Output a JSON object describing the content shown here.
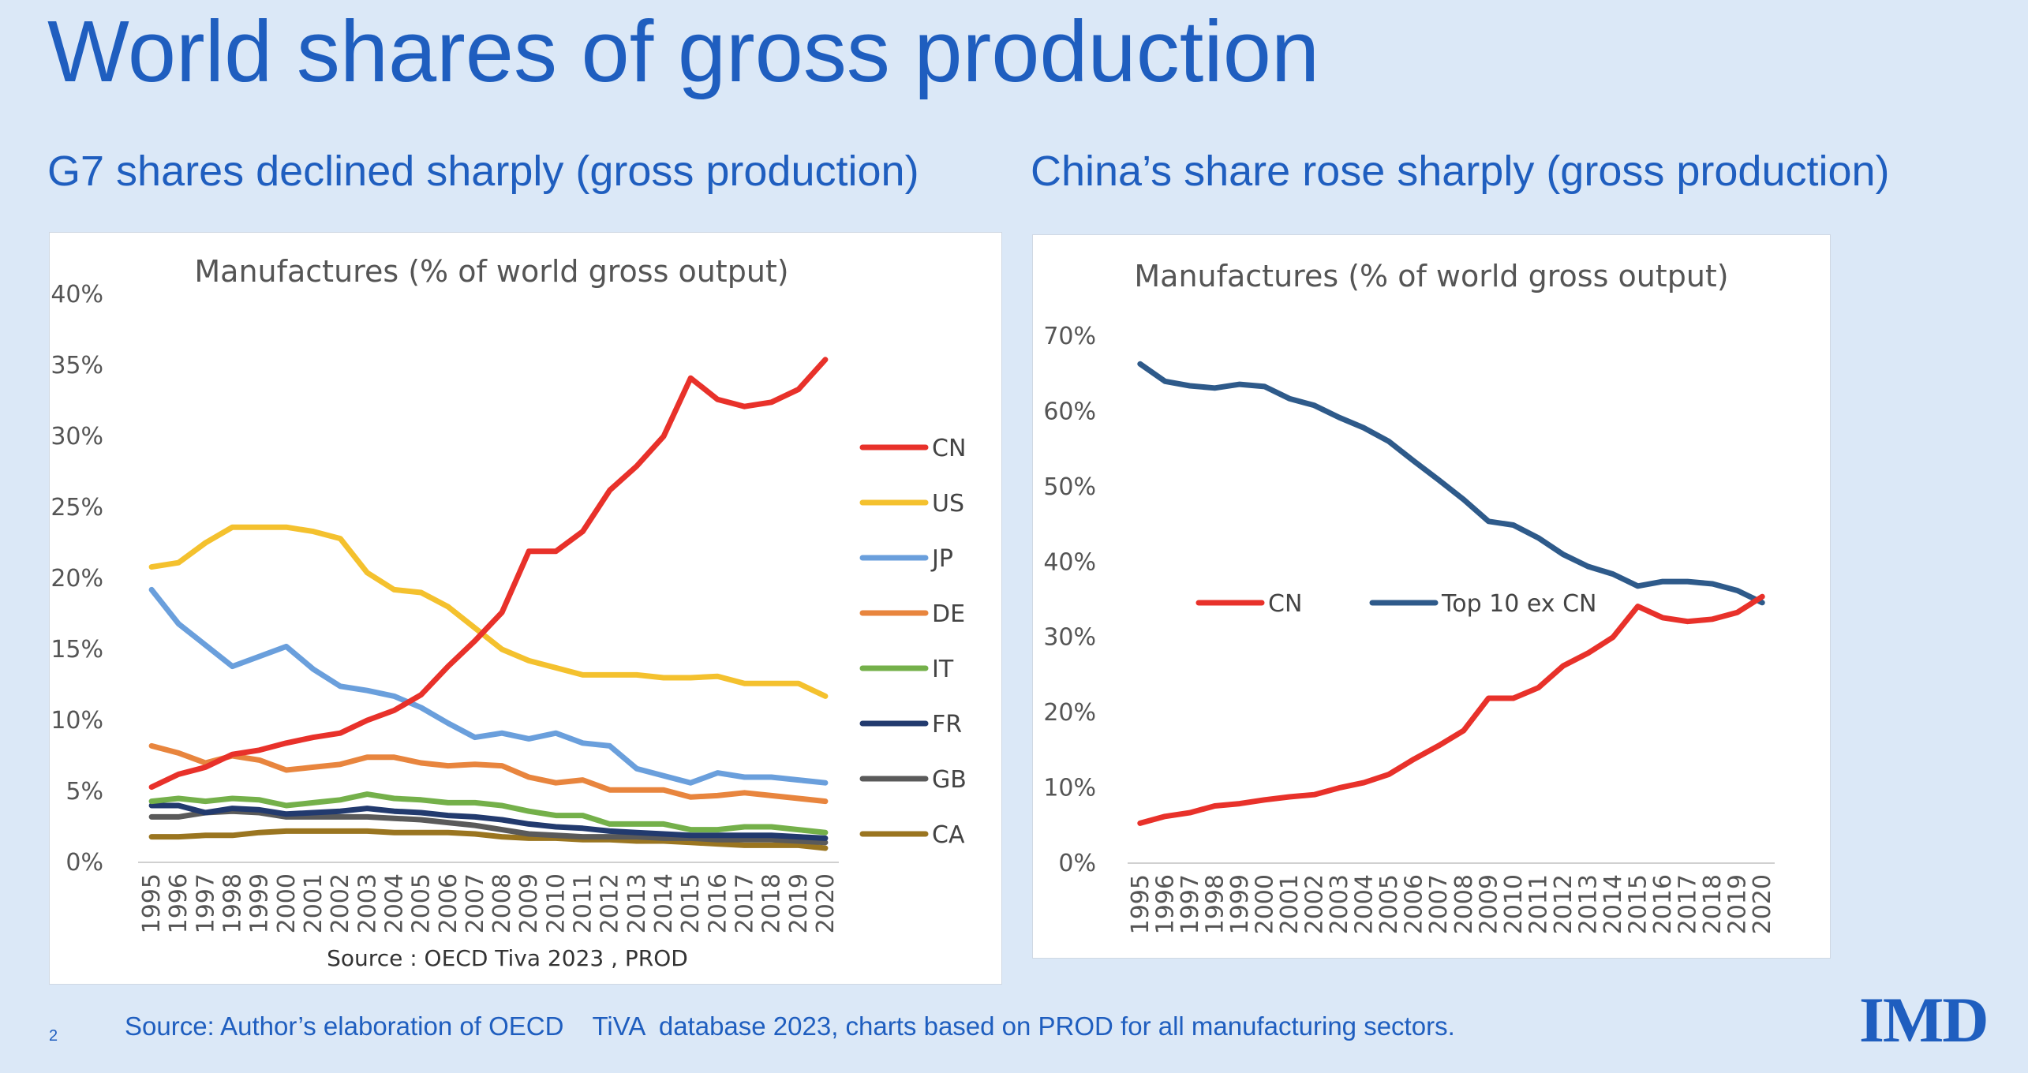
{
  "slide": {
    "title": "World shares of gross production",
    "left_subtitle": "G7 shares declined sharply (gross production)",
    "right_subtitle": "China’s share rose sharply (gross production)",
    "footnote": "Source: Author’s elaboration of OECD    TiVA  database 2023, charts based on PROD for all manufacturing sectors.",
    "page_number": "2",
    "logo": "IMD"
  },
  "chart_data": [
    {
      "type": "line",
      "title": "Manufactures (% of world gross output)",
      "source": "Source : OECD Tiva 2023 , PROD",
      "x": [
        "1995",
        "1996",
        "1997",
        "1998",
        "1999",
        "2000",
        "2001",
        "2002",
        "2003",
        "2004",
        "2005",
        "2006",
        "2007",
        "2008",
        "2009",
        "2010",
        "2011",
        "2012",
        "2013",
        "2014",
        "2015",
        "2016",
        "2017",
        "2018",
        "2019",
        "2020"
      ],
      "ylim": [
        0,
        40
      ],
      "yticks": [
        0,
        5,
        10,
        15,
        20,
        25,
        30,
        35,
        40
      ],
      "ytick_labels": [
        "0%",
        "5%",
        "10%",
        "15%",
        "20%",
        "25%",
        "30%",
        "35%",
        "40%"
      ],
      "legend_position": "right",
      "grid": false,
      "series": [
        {
          "name": "CN",
          "color": "#e8312a",
          "values": [
            5.3,
            6.2,
            6.7,
            7.6,
            7.9,
            8.4,
            8.8,
            9.1,
            10.0,
            10.7,
            11.8,
            13.8,
            15.6,
            17.6,
            21.9,
            21.9,
            23.3,
            26.2,
            27.9,
            30.0,
            34.1,
            32.6,
            32.1,
            32.4,
            33.3,
            35.4
          ]
        },
        {
          "name": "US",
          "color": "#f4c12e",
          "values": [
            20.8,
            21.1,
            22.5,
            23.6,
            23.6,
            23.6,
            23.3,
            22.8,
            20.4,
            19.2,
            19.0,
            18.0,
            16.5,
            15.0,
            14.2,
            13.7,
            13.2,
            13.2,
            13.2,
            13.0,
            13.0,
            13.1,
            12.6,
            12.6,
            12.6,
            11.7
          ]
        },
        {
          "name": "JP",
          "color": "#6a9fdc",
          "values": [
            19.2,
            16.8,
            15.3,
            13.8,
            14.5,
            15.2,
            13.6,
            12.4,
            12.1,
            11.7,
            10.9,
            9.8,
            8.8,
            9.1,
            8.7,
            9.1,
            8.4,
            8.2,
            6.6,
            6.1,
            5.6,
            6.3,
            6.0,
            6.0,
            5.8,
            5.6
          ]
        },
        {
          "name": "DE",
          "color": "#e8853e",
          "values": [
            8.2,
            7.7,
            7.0,
            7.5,
            7.2,
            6.5,
            6.7,
            6.9,
            7.4,
            7.4,
            7.0,
            6.8,
            6.9,
            6.8,
            6.0,
            5.6,
            5.8,
            5.1,
            5.1,
            5.1,
            4.6,
            4.7,
            4.9,
            4.7,
            4.5,
            4.3
          ]
        },
        {
          "name": "IT",
          "color": "#74b04a",
          "values": [
            4.3,
            4.5,
            4.3,
            4.5,
            4.4,
            4.0,
            4.2,
            4.4,
            4.8,
            4.5,
            4.4,
            4.2,
            4.2,
            4.0,
            3.6,
            3.3,
            3.3,
            2.7,
            2.7,
            2.7,
            2.3,
            2.3,
            2.5,
            2.5,
            2.3,
            2.1
          ]
        },
        {
          "name": "FR",
          "color": "#223a6e",
          "values": [
            4.0,
            4.0,
            3.5,
            3.8,
            3.7,
            3.4,
            3.5,
            3.6,
            3.8,
            3.6,
            3.5,
            3.3,
            3.2,
            3.0,
            2.7,
            2.5,
            2.4,
            2.2,
            2.1,
            2.0,
            1.9,
            1.9,
            1.9,
            1.9,
            1.8,
            1.7
          ]
        },
        {
          "name": "GB",
          "color": "#5a5a5a",
          "values": [
            3.2,
            3.2,
            3.5,
            3.6,
            3.5,
            3.2,
            3.2,
            3.2,
            3.2,
            3.1,
            3.0,
            2.8,
            2.6,
            2.3,
            2.0,
            1.9,
            1.8,
            1.8,
            1.8,
            1.7,
            1.7,
            1.6,
            1.6,
            1.6,
            1.5,
            1.4
          ]
        },
        {
          "name": "CA",
          "color": "#9a7520",
          "values": [
            1.8,
            1.8,
            1.9,
            1.9,
            2.1,
            2.2,
            2.2,
            2.2,
            2.2,
            2.1,
            2.1,
            2.1,
            2.0,
            1.8,
            1.7,
            1.7,
            1.6,
            1.6,
            1.5,
            1.5,
            1.4,
            1.3,
            1.2,
            1.2,
            1.2,
            1.0
          ]
        }
      ]
    },
    {
      "type": "line",
      "title": "Manufactures (% of world gross output)",
      "x": [
        "1995",
        "1996",
        "1997",
        "1998",
        "1999",
        "2000",
        "2001",
        "2002",
        "2003",
        "2004",
        "2005",
        "2006",
        "2007",
        "2008",
        "2009",
        "2010",
        "2011",
        "2012",
        "2013",
        "2014",
        "2015",
        "2016",
        "2017",
        "2018",
        "2019",
        "2020"
      ],
      "ylim": [
        0,
        70
      ],
      "yticks": [
        0,
        10,
        20,
        30,
        40,
        50,
        60,
        70
      ],
      "ytick_labels": [
        "0%",
        "10%",
        "20%",
        "30%",
        "40%",
        "50%",
        "60%",
        "70%"
      ],
      "legend_position": "center",
      "grid": false,
      "series": [
        {
          "name": "CN",
          "color": "#e8312a",
          "values": [
            5.3,
            6.2,
            6.7,
            7.6,
            7.9,
            8.4,
            8.8,
            9.1,
            10.0,
            10.7,
            11.8,
            13.8,
            15.6,
            17.6,
            21.9,
            21.9,
            23.3,
            26.2,
            27.9,
            30.0,
            34.1,
            32.6,
            32.1,
            32.4,
            33.3,
            35.4
          ]
        },
        {
          "name": "Top  10 ex CN",
          "color": "#2e5a8a",
          "values": [
            66.3,
            64.0,
            63.4,
            63.1,
            63.6,
            63.3,
            61.7,
            60.8,
            59.2,
            57.8,
            56.0,
            53.4,
            50.9,
            48.3,
            45.4,
            44.9,
            43.2,
            41.0,
            39.4,
            38.4,
            36.8,
            37.4,
            37.4,
            37.1,
            36.2,
            34.6
          ]
        }
      ]
    }
  ]
}
